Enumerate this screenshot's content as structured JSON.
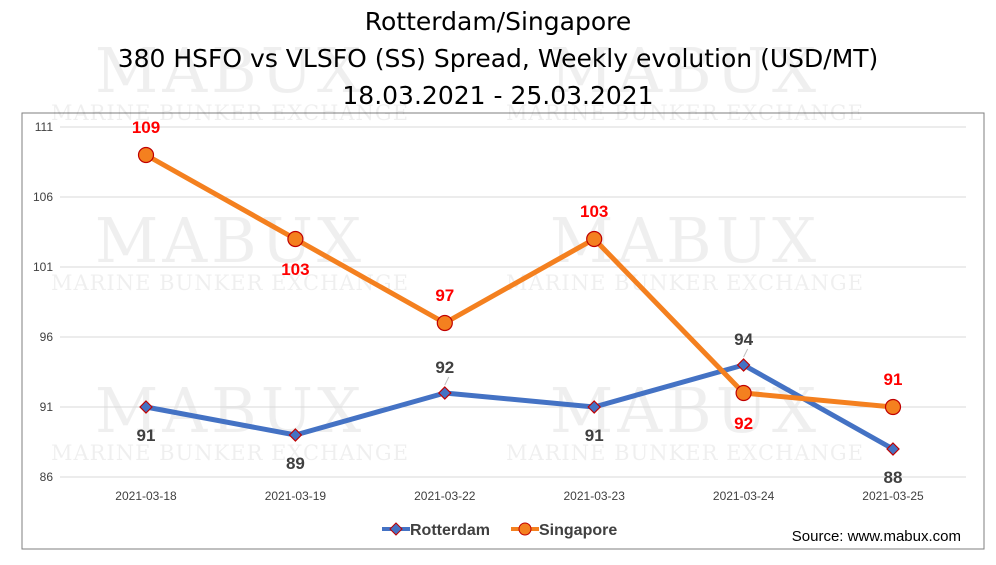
{
  "chart_data": {
    "type": "line",
    "title": [
      "Rotterdam/Singapore",
      "380 HSFO vs VLSFO (SS) Spread, Weekly evolution (USD/MT)",
      "18.03.2021 - 25.03.2021"
    ],
    "categories": [
      "2021-03-18",
      "2021-03-19",
      "2021-03-22",
      "2021-03-23",
      "2021-03-24",
      "2021-03-25"
    ],
    "y_ticks": [
      "111",
      "106",
      "101",
      "96",
      "91",
      "86"
    ],
    "ylim": [
      86,
      111
    ],
    "grid": true,
    "legend_position": "bottom",
    "series": [
      {
        "name": "Rotterdam",
        "values": [
          91,
          89,
          92,
          91,
          94,
          88
        ],
        "labels": [
          "91",
          "89",
          "92",
          "91",
          "94",
          "88"
        ],
        "color": "#4472C4",
        "label_color": "#404040"
      },
      {
        "name": "Singapore",
        "values": [
          109,
          103,
          97,
          103,
          92,
          91
        ],
        "labels": [
          "109",
          "103",
          "97",
          "103",
          "92",
          "91"
        ],
        "color": "#F4801F",
        "label_color": "#FF0000"
      }
    ],
    "source": "Source: www.mabux.com"
  },
  "watermark": {
    "logo": "MABUX",
    "tagline": "MARINE BUNKER EXCHANGE"
  }
}
